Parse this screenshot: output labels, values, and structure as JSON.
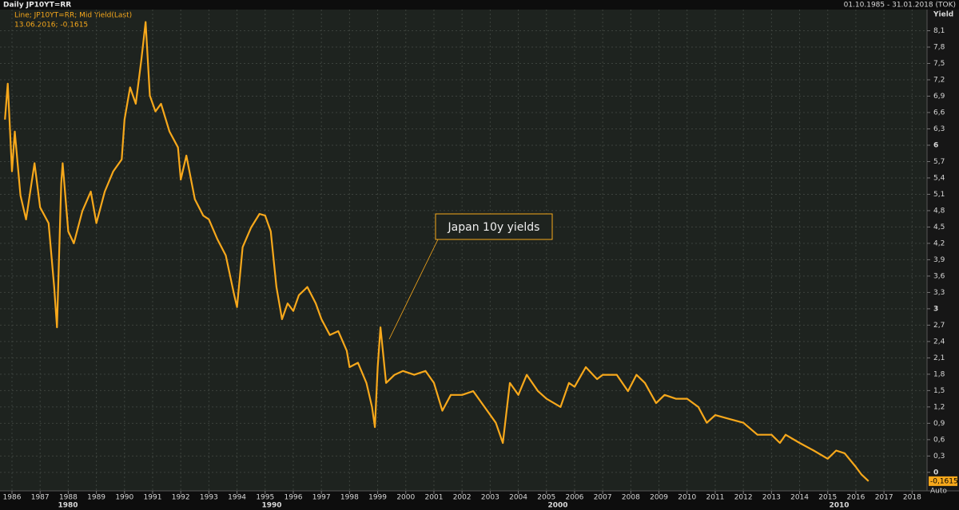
{
  "chart_data": {
    "type": "line",
    "header": "Daily JP10YT=RR",
    "date_range": "01.10.1985 - 31.01.2018 (TOK)",
    "legend_lines": [
      "Line; JP10YT=RR; Mid Yield(Last)",
      "13.06.2016; -0,1615"
    ],
    "y_axis_label": "Yield",
    "annotation": "Japan 10y yields",
    "last_value": {
      "value": -0.1615,
      "label": "-0,1615"
    },
    "scale_mode": "Auto",
    "decade_labels": [
      "1980",
      "1990",
      "2000",
      "2010"
    ],
    "grid": true,
    "xlim": [
      1985.574,
      2018.53
    ],
    "ylim": [
      -0.5,
      8.4
    ],
    "xticks": [
      1986,
      1987,
      1988,
      1989,
      1990,
      1991,
      1992,
      1993,
      1994,
      1995,
      1996,
      1997,
      1998,
      1999,
      2000,
      2001,
      2002,
      2003,
      2004,
      2005,
      2006,
      2007,
      2008,
      2009,
      2010,
      2011,
      2012,
      2013,
      2014,
      2015,
      2016,
      2017,
      2018
    ],
    "yticks": [
      0,
      {
        "value": 0.3,
        "label": "0,3"
      },
      {
        "value": 0.6,
        "label": "0,6"
      },
      {
        "value": 0.9,
        "label": "0,9"
      },
      {
        "value": 1.2,
        "label": "1,2"
      },
      {
        "value": 1.5,
        "label": "1,5"
      },
      {
        "value": 1.8,
        "label": "1,8"
      },
      {
        "value": 2.1,
        "label": "2,1"
      },
      {
        "value": 2.4,
        "label": "2,4"
      },
      {
        "value": 2.7,
        "label": "2,7"
      },
      3,
      {
        "value": 3.3,
        "label": "3,3"
      },
      {
        "value": 3.6,
        "label": "3,6"
      },
      {
        "value": 3.9,
        "label": "3,9"
      },
      {
        "value": 4.2,
        "label": "4,2"
      },
      {
        "value": 4.5,
        "label": "4,5"
      },
      {
        "value": 4.8,
        "label": "4,8"
      },
      {
        "value": 5.1,
        "label": "5,1"
      },
      {
        "value": 5.4,
        "label": "5,4"
      },
      {
        "value": 5.7,
        "label": "5,7"
      },
      6,
      {
        "value": 6.3,
        "label": "6,3"
      },
      {
        "value": 6.6,
        "label": "6,6"
      },
      {
        "value": 6.9,
        "label": "6,9"
      },
      {
        "value": 7.2,
        "label": "7,2"
      },
      {
        "value": 7.5,
        "label": "7,5"
      },
      {
        "value": 7.8,
        "label": "7,8"
      },
      {
        "value": 8.1,
        "label": "8,1"
      }
    ],
    "series": [
      {
        "color": "#f7a81b",
        "x": [
          1985.75,
          1985.85,
          1986.0,
          1986.1,
          1986.3,
          1986.5,
          1986.8,
          1987.0,
          1987.3,
          1987.5,
          1987.6,
          1987.75,
          1987.8,
          1988.0,
          1988.2,
          1988.5,
          1988.8,
          1989.0,
          1989.3,
          1989.6,
          1989.9,
          1990.0,
          1990.2,
          1990.4,
          1990.6,
          1990.75,
          1990.9,
          1991.1,
          1991.3,
          1991.6,
          1991.9,
          1992.0,
          1992.2,
          1992.5,
          1992.8,
          1993.0,
          1993.3,
          1993.6,
          1993.9,
          1994.0,
          1994.2,
          1994.5,
          1994.8,
          1995.0,
          1995.2,
          1995.4,
          1995.6,
          1995.8,
          1996.0,
          1996.2,
          1996.5,
          1996.8,
          1997.0,
          1997.3,
          1997.6,
          1997.9,
          1998.0,
          1998.3,
          1998.6,
          1998.8,
          1998.9,
          1999.0,
          1999.1,
          1999.3,
          1999.6,
          1999.9,
          2000.3,
          2000.7,
          2001.0,
          2001.3,
          2001.6,
          2002.0,
          2002.4,
          2002.8,
          2003.2,
          2003.45,
          2003.7,
          2004.0,
          2004.3,
          2004.7,
          2005.0,
          2005.5,
          2005.8,
          2006.0,
          2006.4,
          2006.8,
          2007.0,
          2007.5,
          2007.9,
          2008.2,
          2008.5,
          2008.9,
          2009.2,
          2009.6,
          2010.0,
          2010.4,
          2010.7,
          2011.0,
          2011.5,
          2012.0,
          2012.5,
          2013.0,
          2013.3,
          2013.5,
          2014.0,
          2014.5,
          2015.0,
          2015.3,
          2015.6,
          2016.0,
          2016.2,
          2016.45
        ],
        "values": [
          6.47,
          7.13,
          5.52,
          6.25,
          5.08,
          4.64,
          5.67,
          4.86,
          4.57,
          3.4,
          2.66,
          5.3,
          5.67,
          4.42,
          4.2,
          4.79,
          5.15,
          4.57,
          5.15,
          5.52,
          5.74,
          6.47,
          7.06,
          6.76,
          7.57,
          8.26,
          6.91,
          6.62,
          6.76,
          6.25,
          5.96,
          5.37,
          5.81,
          5.01,
          4.71,
          4.64,
          4.28,
          3.98,
          3.25,
          3.03,
          4.13,
          4.49,
          4.74,
          4.71,
          4.42,
          3.4,
          2.81,
          3.1,
          2.96,
          3.25,
          3.4,
          3.1,
          2.81,
          2.52,
          2.59,
          2.23,
          1.93,
          2.01,
          1.64,
          1.2,
          0.83,
          1.93,
          2.66,
          1.64,
          1.79,
          1.86,
          1.79,
          1.86,
          1.64,
          1.13,
          1.42,
          1.42,
          1.49,
          1.2,
          0.91,
          0.54,
          1.64,
          1.42,
          1.79,
          1.49,
          1.35,
          1.2,
          1.64,
          1.57,
          1.93,
          1.71,
          1.79,
          1.79,
          1.49,
          1.79,
          1.64,
          1.27,
          1.42,
          1.35,
          1.35,
          1.2,
          0.91,
          1.05,
          0.98,
          0.91,
          0.69,
          0.69,
          0.54,
          0.69,
          0.54,
          0.4,
          0.25,
          0.4,
          0.35,
          0.1,
          -0.04,
          -0.16
        ]
      }
    ]
  }
}
